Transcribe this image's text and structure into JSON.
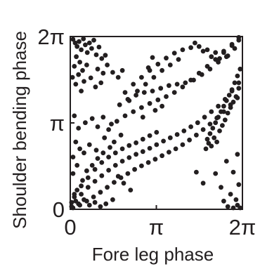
{
  "chart_data": {
    "type": "scatter",
    "title": "",
    "xlabel": "Fore leg phase",
    "ylabel": "Shoulder bending phase",
    "xlim": [
      0,
      6.2832
    ],
    "ylim": [
      0,
      6.2832
    ],
    "xticks": [
      {
        "value": 0,
        "label": "0"
      },
      {
        "value": 3.1416,
        "label": "π"
      },
      {
        "value": 6.2832,
        "label": "2π"
      }
    ],
    "yticks": [
      {
        "value": 0,
        "label": "0"
      },
      {
        "value": 3.1416,
        "label": "π"
      },
      {
        "value": 6.2832,
        "label": "2π"
      }
    ],
    "grid": false,
    "legend": "none",
    "marker_color": "#231f20",
    "axis_color": "#231f20",
    "points": [
      [
        0.1,
        6.18
      ],
      [
        0.18,
        6.05
      ],
      [
        0.25,
        5.92
      ],
      [
        0.32,
        6.1
      ],
      [
        0.4,
        5.8
      ],
      [
        0.48,
        6.2
      ],
      [
        0.55,
        5.98
      ],
      [
        0.62,
        5.7
      ],
      [
        0.7,
        6.05
      ],
      [
        0.78,
        5.85
      ],
      [
        0.86,
        6.15
      ],
      [
        0.95,
        5.62
      ],
      [
        1.05,
        5.9
      ],
      [
        1.15,
        5.48
      ],
      [
        0.22,
        5.55
      ],
      [
        0.35,
        5.35
      ],
      [
        0.15,
        5.2
      ],
      [
        0.45,
        5.05
      ],
      [
        0.6,
        5.25
      ],
      [
        0.3,
        4.9
      ],
      [
        0.5,
        4.65
      ],
      [
        0.75,
        4.78
      ],
      [
        1.0,
        5.1
      ],
      [
        1.2,
        4.95
      ],
      [
        1.35,
        5.25
      ],
      [
        1.55,
        4.98
      ],
      [
        1.75,
        4.8
      ],
      [
        1.9,
        5.05
      ],
      [
        1.28,
        5.6
      ],
      [
        0.2,
        4.55
      ],
      [
        0.08,
        4.8
      ],
      [
        0.4,
        4.3
      ],
      [
        0.92,
        4.45
      ],
      [
        1.12,
        4.6
      ],
      [
        3.0,
        5.52
      ],
      [
        2.85,
        5.15
      ],
      [
        2.0,
        4.25
      ],
      [
        2.3,
        4.55
      ],
      [
        2.6,
        4.8
      ],
      [
        2.9,
        5.05
      ],
      [
        3.2,
        5.28
      ],
      [
        3.5,
        5.5
      ],
      [
        3.8,
        5.68
      ],
      [
        4.1,
        5.8
      ],
      [
        4.4,
        5.88
      ],
      [
        4.7,
        5.92
      ],
      [
        5.0,
        5.8
      ],
      [
        5.3,
        5.7
      ],
      [
        5.6,
        5.75
      ],
      [
        5.9,
        6.0
      ],
      [
        6.15,
        6.25
      ],
      [
        4.55,
        6.05
      ],
      [
        4.85,
        5.75
      ],
      [
        5.15,
        5.55
      ],
      [
        5.45,
        5.48
      ],
      [
        5.75,
        5.58
      ],
      [
        3.95,
        5.45
      ],
      [
        3.65,
        5.25
      ],
      [
        3.35,
        5.05
      ],
      [
        3.05,
        4.8
      ],
      [
        2.75,
        4.55
      ],
      [
        2.45,
        4.3
      ],
      [
        2.15,
        3.95
      ],
      [
        1.8,
        3.8
      ],
      [
        2.1,
        4.0
      ],
      [
        2.4,
        4.15
      ],
      [
        2.7,
        4.25
      ],
      [
        3.0,
        4.3
      ],
      [
        3.3,
        4.4
      ],
      [
        3.6,
        4.5
      ],
      [
        3.9,
        4.55
      ],
      [
        4.2,
        4.6
      ],
      [
        4.5,
        4.7
      ],
      [
        4.8,
        4.9
      ],
      [
        5.1,
        5.1
      ],
      [
        5.4,
        5.35
      ],
      [
        5.7,
        5.55
      ],
      [
        6.0,
        5.85
      ],
      [
        1.4,
        2.9
      ],
      [
        1.7,
        3.2
      ],
      [
        2.0,
        3.4
      ],
      [
        2.3,
        3.55
      ],
      [
        2.6,
        3.7
      ],
      [
        2.9,
        3.85
      ],
      [
        3.2,
        3.98
      ],
      [
        3.5,
        4.1
      ],
      [
        3.8,
        4.25
      ],
      [
        4.1,
        4.45
      ],
      [
        4.4,
        4.7
      ],
      [
        4.7,
        4.95
      ],
      [
        5.0,
        5.2
      ],
      [
        5.3,
        5.45
      ],
      [
        5.6,
        5.7
      ],
      [
        5.9,
        5.95
      ],
      [
        6.15,
        6.15
      ],
      [
        3.1,
        3.6
      ],
      [
        3.35,
        3.75
      ],
      [
        2.65,
        3.35
      ],
      [
        0.2,
        2.45
      ],
      [
        0.35,
        2.2
      ],
      [
        0.1,
        1.9
      ],
      [
        0.25,
        1.6
      ],
      [
        0.5,
        2.05
      ],
      [
        0.7,
        2.35
      ],
      [
        0.3,
        2.95
      ],
      [
        0.55,
        3.15
      ],
      [
        0.15,
        3.4
      ],
      [
        0.8,
        3.3
      ],
      [
        1.0,
        3.0
      ],
      [
        1.2,
        3.35
      ],
      [
        1.5,
        3.1
      ],
      [
        1.25,
        2.6
      ],
      [
        0.95,
        2.15
      ],
      [
        1.6,
        2.45
      ],
      [
        1.85,
        2.7
      ],
      [
        0.05,
        0.1
      ],
      [
        0.2,
        0.3
      ],
      [
        0.4,
        0.55
      ],
      [
        0.65,
        0.8
      ],
      [
        0.9,
        1.02
      ],
      [
        1.15,
        1.22
      ],
      [
        1.4,
        1.42
      ],
      [
        1.65,
        1.6
      ],
      [
        1.9,
        1.75
      ],
      [
        2.15,
        1.88
      ],
      [
        2.4,
        2.0
      ],
      [
        2.65,
        2.1
      ],
      [
        2.9,
        2.22
      ],
      [
        3.15,
        2.35
      ],
      [
        3.4,
        2.48
      ],
      [
        3.65,
        2.6
      ],
      [
        3.9,
        2.72
      ],
      [
        4.15,
        2.85
      ],
      [
        4.4,
        3.0
      ],
      [
        4.65,
        3.15
      ],
      [
        4.9,
        3.35
      ],
      [
        5.15,
        3.55
      ],
      [
        5.4,
        3.75
      ],
      [
        5.65,
        4.0
      ],
      [
        5.9,
        4.3
      ],
      [
        6.15,
        4.6
      ],
      [
        0.1,
        0.05
      ],
      [
        0.35,
        0.15
      ],
      [
        0.6,
        0.3
      ],
      [
        0.85,
        0.45
      ],
      [
        1.1,
        0.62
      ],
      [
        1.35,
        0.8
      ],
      [
        1.6,
        0.98
      ],
      [
        1.85,
        1.15
      ],
      [
        2.1,
        1.3
      ],
      [
        2.35,
        1.45
      ],
      [
        2.6,
        1.58
      ],
      [
        2.85,
        1.7
      ],
      [
        3.1,
        1.82
      ],
      [
        3.35,
        1.95
      ],
      [
        3.6,
        2.08
      ],
      [
        3.85,
        2.2
      ],
      [
        4.1,
        2.35
      ],
      [
        4.35,
        2.52
      ],
      [
        4.6,
        2.7
      ],
      [
        4.85,
        2.9
      ],
      [
        5.1,
        3.1
      ],
      [
        5.35,
        3.32
      ],
      [
        5.6,
        3.55
      ],
      [
        5.85,
        3.8
      ],
      [
        6.1,
        4.05
      ],
      [
        0.15,
        0.55
      ],
      [
        0.4,
        0.85
      ],
      [
        0.65,
        1.15
      ],
      [
        0.9,
        1.45
      ],
      [
        1.15,
        1.7
      ],
      [
        1.4,
        1.9
      ],
      [
        1.65,
        2.05
      ],
      [
        1.9,
        2.2
      ],
      [
        2.15,
        2.32
      ],
      [
        2.4,
        2.42
      ],
      [
        2.65,
        2.55
      ],
      [
        2.9,
        2.68
      ],
      [
        3.15,
        2.8
      ],
      [
        5.0,
        2.55
      ],
      [
        5.1,
        2.75
      ],
      [
        5.2,
        2.95
      ],
      [
        5.3,
        3.15
      ],
      [
        5.4,
        3.35
      ],
      [
        5.5,
        3.55
      ],
      [
        5.6,
        3.75
      ],
      [
        5.7,
        3.95
      ],
      [
        5.8,
        4.15
      ],
      [
        5.9,
        4.35
      ],
      [
        6.0,
        4.6
      ],
      [
        6.1,
        4.85
      ],
      [
        6.2,
        5.1
      ],
      [
        5.55,
        3.05
      ],
      [
        5.65,
        3.25
      ],
      [
        5.75,
        3.5
      ],
      [
        5.85,
        3.7
      ],
      [
        5.95,
        3.9
      ],
      [
        6.05,
        4.1
      ],
      [
        6.15,
        4.4
      ],
      [
        4.95,
        2.2
      ],
      [
        5.05,
        2.4
      ],
      [
        5.25,
        2.6
      ],
      [
        5.45,
        2.85
      ],
      [
        5.35,
        2.45
      ],
      [
        5.15,
        2.3
      ],
      [
        5.75,
        0.1
      ],
      [
        5.95,
        0.05
      ],
      [
        6.1,
        0.15
      ],
      [
        6.2,
        0.05
      ],
      [
        5.6,
        0.3
      ],
      [
        6.05,
        0.35
      ],
      [
        5.85,
        0.55
      ],
      [
        5.5,
        0.8
      ],
      [
        6.15,
        0.9
      ],
      [
        5.95,
        1.35
      ],
      [
        6.1,
        2.0
      ],
      [
        5.7,
        1.75
      ],
      [
        5.3,
        1.3
      ],
      [
        4.85,
        0.95
      ],
      [
        4.6,
        1.35
      ],
      [
        0.05,
        0.25
      ],
      [
        0.15,
        0.45
      ],
      [
        0.3,
        0.2
      ],
      [
        0.5,
        0.35
      ],
      [
        0.7,
        0.15
      ],
      [
        0.9,
        0.25
      ],
      [
        1.1,
        0.1
      ],
      [
        1.3,
        0.2
      ],
      [
        1.55,
        0.35
      ],
      [
        0.25,
        0.7
      ],
      [
        0.45,
        1.05
      ],
      [
        0.1,
        1.3
      ],
      [
        0.6,
        1.4
      ],
      [
        0.8,
        1.6
      ],
      [
        1.0,
        1.85
      ],
      [
        1.2,
        2.05
      ],
      [
        1.45,
        2.25
      ],
      [
        1.75,
        1.2
      ],
      [
        1.95,
        0.95
      ],
      [
        2.2,
        0.7
      ]
    ]
  }
}
